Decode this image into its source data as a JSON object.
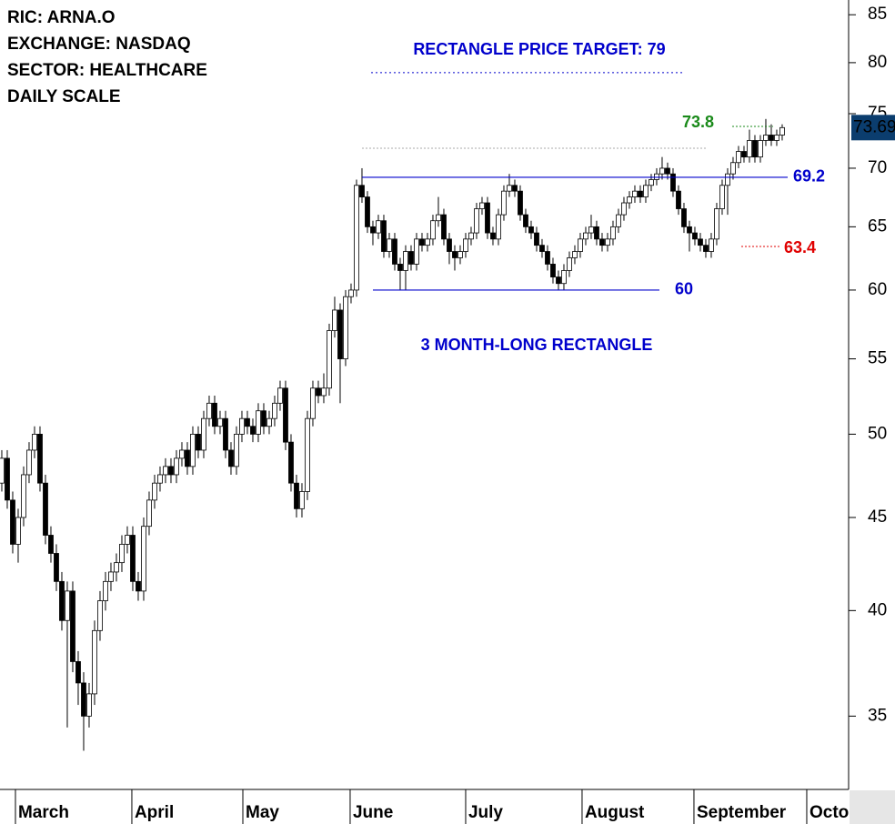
{
  "chart_data": {
    "type": "candlestick",
    "info": [
      "RIC: ARNA.O",
      "EXCHANGE: NASDAQ",
      "SECTOR: HEALTHCARE",
      "DAILY SCALE"
    ],
    "target_text": "RECTANGLE PRICE TARGET: 79",
    "target": 79,
    "pattern_text": "3 MONTH-LONG RECTANGLE",
    "levels": [
      {
        "value": 69.2,
        "color": "#0000cc",
        "style": "solid"
      },
      {
        "value": 60,
        "color": "#0000cc",
        "style": "solid"
      },
      {
        "value": 73.8,
        "color": "#1a8a1a",
        "style": "dotted"
      },
      {
        "value": 63.4,
        "color": "#e00000",
        "style": "dotted"
      }
    ],
    "up_color": "#ffffff",
    "down_color": "#000000",
    "last_color": "#0b3d6e",
    "log_scale": true,
    "ylim": [
      31.9,
      86.6
    ],
    "yticks": [
      35,
      40,
      45,
      50,
      55,
      60,
      65,
      70,
      75,
      80,
      85
    ],
    "xlim": [
      -0.33,
      155.17
    ],
    "xticks": [
      {
        "value": 2.5,
        "label": "March"
      },
      {
        "value": 23.83,
        "label": "April"
      },
      {
        "value": 44.17,
        "label": "May"
      },
      {
        "value": 63.83,
        "label": "June"
      },
      {
        "value": 85,
        "label": "July"
      },
      {
        "value": 106.33,
        "label": "August"
      },
      {
        "value": 126.83,
        "label": "September"
      },
      {
        "value": 147.5,
        "label": "October"
      }
    ],
    "ohlc": [
      [
        47,
        49,
        46.5,
        48.5
      ],
      [
        48.5,
        49,
        45.5,
        46
      ],
      [
        46,
        46.5,
        43,
        43.5
      ],
      [
        43.5,
        45.5,
        42.5,
        45
      ],
      [
        45,
        48,
        44.5,
        47.5
      ],
      [
        47.5,
        49.5,
        47,
        49
      ],
      [
        49,
        50.5,
        48.5,
        50
      ],
      [
        50,
        50.5,
        46.5,
        47
      ],
      [
        47,
        47.5,
        43.5,
        44
      ],
      [
        44,
        44.5,
        42.5,
        43
      ],
      [
        43,
        43.5,
        41,
        41.5
      ],
      [
        41.5,
        42,
        39,
        39.5
      ],
      [
        39.5,
        41.5,
        34.5,
        41
      ],
      [
        41,
        41.5,
        37,
        37.5
      ],
      [
        37.5,
        38,
        35.5,
        36.5
      ],
      [
        36.5,
        37,
        33.5,
        35
      ],
      [
        35,
        36.5,
        34.5,
        36
      ],
      [
        36,
        39.5,
        35.5,
        39
      ],
      [
        39,
        41,
        38.5,
        40.5
      ],
      [
        40.5,
        42,
        40,
        41.5
      ],
      [
        41.5,
        42.5,
        41,
        42
      ],
      [
        42,
        43,
        41.5,
        42.5
      ],
      [
        42.5,
        44,
        42,
        43.5
      ],
      [
        43.5,
        44.5,
        43,
        44
      ],
      [
        44,
        44.5,
        41,
        41.5
      ],
      [
        41.5,
        42,
        40.5,
        41
      ],
      [
        41,
        45,
        40.5,
        44.5
      ],
      [
        44.5,
        46.5,
        44,
        46
      ],
      [
        46,
        47.5,
        45.5,
        47
      ],
      [
        47,
        48,
        46.5,
        47.5
      ],
      [
        47.5,
        48.5,
        47,
        48
      ],
      [
        48,
        48.5,
        47,
        47.5
      ],
      [
        47.5,
        49,
        47,
        48.5
      ],
      [
        48.5,
        49.5,
        48,
        49
      ],
      [
        49,
        49.5,
        47.5,
        48
      ],
      [
        48,
        50.5,
        47.5,
        50
      ],
      [
        50,
        50.5,
        48.5,
        49
      ],
      [
        49,
        51.5,
        48.5,
        51
      ],
      [
        51,
        52.5,
        50.5,
        52
      ],
      [
        52,
        52.5,
        50,
        50.5
      ],
      [
        50.5,
        51.5,
        50,
        51
      ],
      [
        51,
        51.5,
        48.5,
        49
      ],
      [
        49,
        49.5,
        47.5,
        48
      ],
      [
        48,
        50.5,
        47.5,
        50
      ],
      [
        50,
        51.5,
        49.5,
        51
      ],
      [
        51,
        51.5,
        50,
        50.5
      ],
      [
        50.5,
        51,
        49.5,
        50
      ],
      [
        50,
        52,
        49.5,
        51.5
      ],
      [
        51.5,
        52,
        50,
        50.5
      ],
      [
        50.5,
        51.5,
        50,
        51
      ],
      [
        51,
        52.5,
        50.5,
        52
      ],
      [
        52,
        53.5,
        51.5,
        53
      ],
      [
        53,
        53.5,
        49,
        49.5
      ],
      [
        49.5,
        50,
        46.5,
        47
      ],
      [
        47,
        47.5,
        45,
        45.5
      ],
      [
        45.5,
        47,
        45,
        46.5
      ],
      [
        46.5,
        51.5,
        46,
        51
      ],
      [
        51,
        53.5,
        50.5,
        53
      ],
      [
        53,
        53.5,
        52,
        52.5
      ],
      [
        52.5,
        54,
        52,
        53
      ],
      [
        53,
        57.5,
        52.5,
        57
      ],
      [
        57,
        59.5,
        56.5,
        58.5
      ],
      [
        58.5,
        59,
        52,
        55
      ],
      [
        55,
        60,
        54.5,
        59.5
      ],
      [
        59.5,
        60.5,
        59,
        60
      ],
      [
        60,
        69,
        59.5,
        68.5
      ],
      [
        68.5,
        70,
        67,
        67.5
      ],
      [
        67.5,
        68,
        64.5,
        65
      ],
      [
        65,
        65.5,
        63.5,
        64.5
      ],
      [
        64.5,
        66,
        64,
        65.5
      ],
      [
        65.5,
        66,
        62.5,
        63
      ],
      [
        63,
        64.5,
        62.5,
        64
      ],
      [
        64,
        64.5,
        61.5,
        62
      ],
      [
        62,
        62.5,
        60,
        61.5
      ],
      [
        61.5,
        63.5,
        60,
        63
      ],
      [
        63,
        63.5,
        61.5,
        62
      ],
      [
        62,
        64.5,
        61.5,
        64
      ],
      [
        64,
        64.5,
        63,
        63.5
      ],
      [
        63.5,
        64.5,
        63,
        64
      ],
      [
        64,
        66,
        63.5,
        65.5
      ],
      [
        65.5,
        67.5,
        65,
        66
      ],
      [
        66,
        66.5,
        63.5,
        64
      ],
      [
        64,
        64.5,
        62,
        63
      ],
      [
        63,
        63.5,
        61.5,
        62.5
      ],
      [
        62.5,
        63.5,
        62,
        63
      ],
      [
        63,
        64.5,
        62.5,
        64
      ],
      [
        64,
        65,
        63.5,
        64.5
      ],
      [
        64.5,
        67,
        64,
        66.5
      ],
      [
        66.5,
        67.5,
        66,
        67
      ],
      [
        67,
        67.5,
        64,
        64.5
      ],
      [
        64.5,
        65,
        63.5,
        64
      ],
      [
        64,
        66.5,
        63.5,
        66
      ],
      [
        66,
        68.5,
        65.5,
        68
      ],
      [
        68,
        69.5,
        67.5,
        68.5
      ],
      [
        68.5,
        69,
        67.5,
        68
      ],
      [
        68,
        68.5,
        65.5,
        66
      ],
      [
        66,
        66.5,
        64.5,
        65
      ],
      [
        65,
        65.5,
        64,
        64.5
      ],
      [
        64.5,
        65,
        63,
        63.5
      ],
      [
        63.5,
        64,
        62.5,
        63
      ],
      [
        63,
        63.5,
        61.5,
        62
      ],
      [
        62,
        62.5,
        60.5,
        61
      ],
      [
        61,
        61.5,
        60,
        60.5
      ],
      [
        60.5,
        62,
        60,
        61.5
      ],
      [
        61.5,
        63,
        61,
        62.5
      ],
      [
        62.5,
        63.5,
        62,
        63
      ],
      [
        63,
        64.5,
        62.5,
        64
      ],
      [
        64,
        65,
        63.5,
        64.5
      ],
      [
        64.5,
        66,
        64,
        65
      ],
      [
        65,
        65.5,
        63.5,
        64
      ],
      [
        64,
        64.5,
        63,
        63.5
      ],
      [
        63.5,
        64.5,
        63,
        64
      ],
      [
        64,
        65.5,
        63.5,
        65
      ],
      [
        65,
        66.5,
        64.5,
        66
      ],
      [
        66,
        67.5,
        65.5,
        67
      ],
      [
        67,
        68,
        66.5,
        67.5
      ],
      [
        67.5,
        68.5,
        67,
        68
      ],
      [
        68,
        68.5,
        67,
        67.5
      ],
      [
        67.5,
        69,
        67,
        68.5
      ],
      [
        68.5,
        69.5,
        68,
        69
      ],
      [
        69,
        70,
        68.5,
        69.5
      ],
      [
        69.5,
        71,
        69,
        70
      ],
      [
        70,
        70.5,
        69,
        69.5
      ],
      [
        69.5,
        70,
        67.5,
        68
      ],
      [
        68,
        68.5,
        66,
        66.5
      ],
      [
        66.5,
        67,
        64.5,
        65
      ],
      [
        65,
        65.5,
        63,
        64.5
      ],
      [
        64.5,
        65,
        63.5,
        64
      ],
      [
        64,
        64.5,
        63,
        63.5
      ],
      [
        63.5,
        64,
        62.5,
        63
      ],
      [
        63,
        64.5,
        62.5,
        64
      ],
      [
        64,
        67,
        63.5,
        66.5
      ],
      [
        66.5,
        69,
        66,
        68.5
      ],
      [
        68.5,
        70,
        66,
        69.5
      ],
      [
        69.5,
        71,
        69,
        70.5
      ],
      [
        70.5,
        72,
        70,
        71.5
      ],
      [
        71.5,
        72,
        70.5,
        71
      ],
      [
        71,
        73.5,
        70.5,
        72.5
      ],
      [
        72.5,
        73,
        70.5,
        71
      ],
      [
        71,
        73,
        70.5,
        72.5
      ],
      [
        72.5,
        74.5,
        72,
        73
      ],
      [
        73,
        74,
        72,
        72.5
      ],
      [
        72.5,
        73.5,
        72,
        73
      ],
      [
        73,
        74,
        72.5,
        73.69
      ]
    ]
  }
}
